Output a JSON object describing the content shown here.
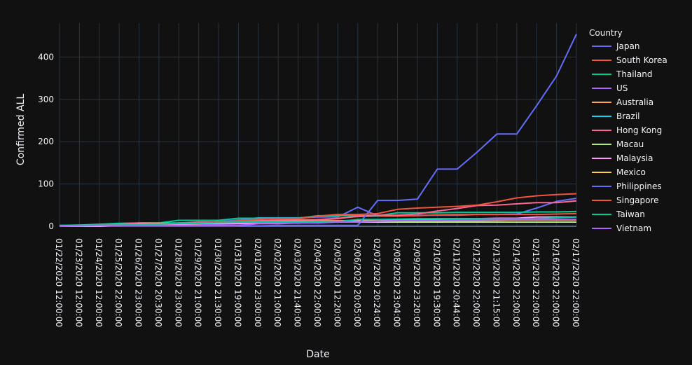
{
  "chart_data": {
    "type": "line",
    "xlabel": "Date",
    "ylabel": "Confirmed ALL",
    "legend_title": "Country",
    "legend_position": "right",
    "grid": true,
    "ylim": [
      0,
      480
    ],
    "yticks": [
      0,
      100,
      200,
      300,
      400
    ],
    "categories": [
      "01/22/2020 12:00:00",
      "01/23/2020 12:00:00",
      "01/24/2020 12:00:00",
      "01/25/2020 22:00:00",
      "01/26/2020 23:00:00",
      "01/27/2020 20:30:00",
      "01/28/2020 23:00:00",
      "01/29/2020 21:00:00",
      "01/30/2020 21:30:00",
      "01/31/2020 19:00:00",
      "02/01/2020 23:00:00",
      "02/02/2020 21:00:00",
      "02/03/2020 21:40:00",
      "02/04/2020 22:00:00",
      "02/05/2020 12:20:00",
      "02/06/2020 20:05:00",
      "02/07/2020 20:24:00",
      "02/08/2020 23:04:00",
      "02/09/2020 23:20:00",
      "02/10/2020 19:30:00",
      "02/11/2020 20:44:00",
      "02/12/2020 22:00:00",
      "02/13/2020 21:15:00",
      "02/14/2020 22:00:00",
      "02/15/2020 22:00:00",
      "02/16/2020 22:00:00",
      "02/17/2020 22:00:00"
    ],
    "series": [
      {
        "name": "Japan",
        "color": "#636efa",
        "values": [
          2,
          1,
          2,
          2,
          4,
          4,
          7,
          7,
          11,
          15,
          20,
          20,
          20,
          22,
          22,
          45,
          25,
          null,
          26,
          26,
          26,
          28,
          28,
          29,
          43,
          59,
          66
        ]
      },
      {
        "name": "South Korea",
        "color": "#EF553B",
        "values": [
          1,
          1,
          2,
          2,
          3,
          4,
          4,
          4,
          4,
          11,
          12,
          15,
          15,
          16,
          19,
          23,
          24,
          24,
          25,
          27,
          28,
          28,
          28,
          28,
          28,
          29,
          30
        ]
      },
      {
        "name": "Thailand",
        "color": "#00cc96",
        "values": [
          2,
          3,
          5,
          7,
          8,
          8,
          14,
          14,
          14,
          19,
          19,
          19,
          19,
          25,
          25,
          25,
          25,
          32,
          32,
          32,
          33,
          33,
          33,
          33,
          34,
          34,
          35
        ]
      },
      {
        "name": "US",
        "color": "#ab63fa",
        "values": [
          1,
          1,
          2,
          2,
          5,
          5,
          5,
          5,
          5,
          6,
          8,
          8,
          11,
          11,
          11,
          12,
          12,
          12,
          12,
          12,
          13,
          13,
          14,
          15,
          15,
          15,
          15
        ]
      },
      {
        "name": "Australia",
        "color": "#FFA15A",
        "values": [
          0,
          0,
          0,
          4,
          5,
          5,
          5,
          6,
          9,
          9,
          12,
          12,
          12,
          13,
          13,
          14,
          15,
          15,
          15,
          15,
          15,
          15,
          15,
          15,
          15,
          15,
          15
        ]
      },
      {
        "name": "Brazil",
        "color": "#19d3f3",
        "values": [
          null,
          null,
          null,
          null,
          null,
          null,
          null,
          null,
          null,
          null,
          null,
          null,
          null,
          null,
          null,
          null,
          null,
          null,
          null,
          null,
          null,
          null,
          null,
          null,
          null,
          null,
          null
        ]
      },
      {
        "name": "Hong Kong",
        "color": "#FF6692",
        "values": [
          0,
          2,
          2,
          5,
          8,
          8,
          8,
          10,
          10,
          12,
          13,
          14,
          15,
          15,
          18,
          24,
          26,
          26,
          29,
          36,
          42,
          49,
          50,
          53,
          56,
          56,
          60
        ]
      },
      {
        "name": "Macau",
        "color": "#B6E880",
        "values": [
          1,
          2,
          2,
          2,
          5,
          6,
          7,
          7,
          7,
          7,
          7,
          7,
          8,
          10,
          10,
          10,
          10,
          10,
          10,
          10,
          10,
          10,
          10,
          10,
          10,
          10,
          10
        ]
      },
      {
        "name": "Malaysia",
        "color": "#FF97FF",
        "values": [
          0,
          0,
          0,
          3,
          4,
          4,
          4,
          7,
          8,
          8,
          8,
          8,
          8,
          10,
          12,
          12,
          12,
          16,
          16,
          18,
          18,
          18,
          19,
          19,
          22,
          22,
          22
        ]
      },
      {
        "name": "Mexico",
        "color": "#FECB52",
        "values": [
          null,
          null,
          null,
          null,
          null,
          null,
          null,
          null,
          null,
          null,
          null,
          null,
          null,
          null,
          null,
          null,
          null,
          null,
          null,
          null,
          null,
          null,
          null,
          null,
          null,
          null,
          null
        ]
      },
      {
        "name": "Philippines",
        "color": "#636efa",
        "values": [
          null,
          null,
          null,
          null,
          null,
          null,
          null,
          null,
          null,
          1,
          1,
          2,
          2,
          2,
          2,
          2,
          61,
          61,
          64,
          135,
          135,
          175,
          218,
          218,
          285,
          355,
          454
        ]
      },
      {
        "name": "Singapore",
        "color": "#EF553B",
        "values": [
          0,
          1,
          3,
          3,
          4,
          5,
          7,
          7,
          10,
          13,
          16,
          18,
          18,
          24,
          28,
          28,
          30,
          40,
          43,
          45,
          47,
          50,
          58,
          67,
          72,
          75,
          77
        ]
      },
      {
        "name": "Taiwan",
        "color": "#00cc96",
        "values": [
          1,
          1,
          3,
          3,
          4,
          5,
          8,
          8,
          9,
          10,
          10,
          10,
          10,
          11,
          11,
          16,
          16,
          17,
          18,
          18,
          18,
          18,
          18,
          18,
          18,
          20,
          22
        ]
      },
      {
        "name": "Vietnam",
        "color": "#ab63fa",
        "values": [
          0,
          2,
          2,
          2,
          2,
          2,
          2,
          2,
          2,
          2,
          6,
          6,
          8,
          8,
          10,
          10,
          12,
          13,
          14,
          14,
          15,
          15,
          16,
          16,
          16,
          16,
          16
        ]
      }
    ]
  }
}
